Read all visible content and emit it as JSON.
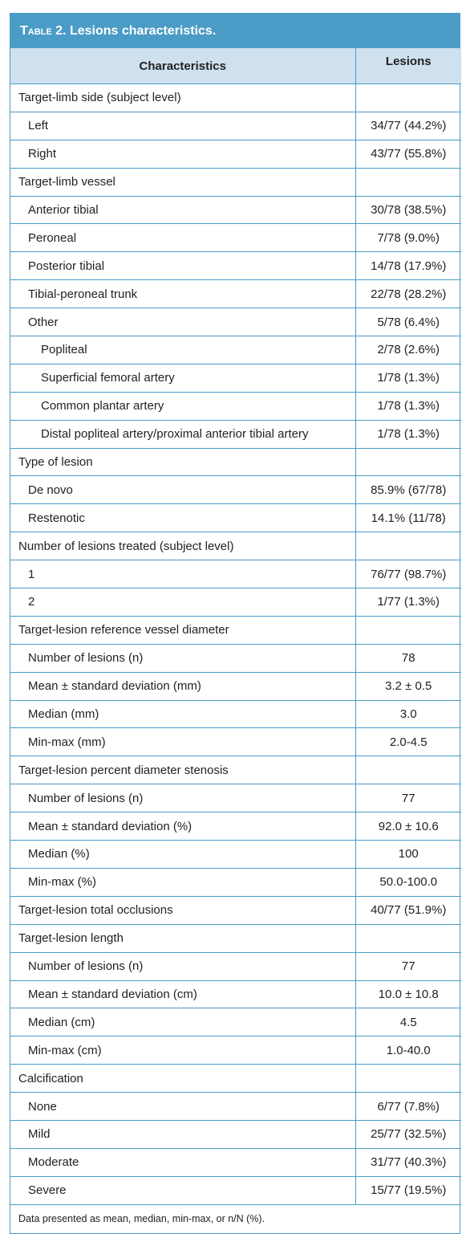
{
  "table": {
    "title_prefix": "Table 2.",
    "title_text": " Lesions characteristics.",
    "headers": [
      "Characteristics",
      "Lesions"
    ],
    "rows": [
      {
        "level": 0,
        "label": "Target-limb side (subject level)",
        "value": ""
      },
      {
        "level": 1,
        "label": "Left",
        "value": "34/77 (44.2%)"
      },
      {
        "level": 1,
        "label": "Right",
        "value": "43/77 (55.8%)"
      },
      {
        "level": 0,
        "label": "Target-limb vessel",
        "value": ""
      },
      {
        "level": 1,
        "label": "Anterior tibial",
        "value": "30/78 (38.5%)"
      },
      {
        "level": 1,
        "label": "Peroneal",
        "value": "7/78 (9.0%)"
      },
      {
        "level": 1,
        "label": "Posterior tibial",
        "value": "14/78 (17.9%)"
      },
      {
        "level": 1,
        "label": "Tibial-peroneal trunk",
        "value": "22/78 (28.2%)"
      },
      {
        "level": 1,
        "label": "Other",
        "value": "5/78 (6.4%)"
      },
      {
        "level": 2,
        "label": "Popliteal",
        "value": "2/78 (2.6%)"
      },
      {
        "level": 2,
        "label": "Superficial femoral artery",
        "value": "1/78 (1.3%)"
      },
      {
        "level": 2,
        "label": "Common plantar artery",
        "value": "1/78 (1.3%)"
      },
      {
        "level": 2,
        "label": "Distal popliteal artery/proximal anterior tibial artery",
        "value": "1/78 (1.3%)"
      },
      {
        "level": 0,
        "label": "Type of lesion",
        "value": ""
      },
      {
        "level": 1,
        "label": "De novo",
        "value": "85.9% (67/78)"
      },
      {
        "level": 1,
        "label": "Restenotic",
        "value": "14.1% (11/78)"
      },
      {
        "level": 0,
        "label": "Number of lesions treated (subject level)",
        "value": ""
      },
      {
        "level": 1,
        "label": "1",
        "value": "76/77 (98.7%)"
      },
      {
        "level": 1,
        "label": "2",
        "value": "1/77 (1.3%)"
      },
      {
        "level": 0,
        "label": "Target-lesion reference vessel diameter",
        "value": ""
      },
      {
        "level": 1,
        "label": "Number of lesions (n)",
        "value": "78"
      },
      {
        "level": 1,
        "label": "Mean ± standard deviation (mm)",
        "value": "3.2 ± 0.5"
      },
      {
        "level": 1,
        "label": "Median (mm)",
        "value": "3.0"
      },
      {
        "level": 1,
        "label": "Min-max (mm)",
        "value": "2.0-4.5"
      },
      {
        "level": 0,
        "label": "Target-lesion percent diameter stenosis",
        "value": ""
      },
      {
        "level": 1,
        "label": "Number of lesions (n)",
        "value": "77"
      },
      {
        "level": 1,
        "label": "Mean ± standard deviation (%)",
        "value": "92.0 ± 10.6"
      },
      {
        "level": 1,
        "label": "Median (%)",
        "value": "100"
      },
      {
        "level": 1,
        "label": "Min-max (%)",
        "value": "50.0-100.0"
      },
      {
        "level": 0,
        "label": "Target-lesion total occlusions",
        "value": "40/77 (51.9%)"
      },
      {
        "level": 0,
        "label": "Target-lesion length",
        "value": ""
      },
      {
        "level": 1,
        "label": "Number of lesions (n)",
        "value": "77"
      },
      {
        "level": 1,
        "label": "Mean ± standard deviation (cm)",
        "value": "10.0 ± 10.8"
      },
      {
        "level": 1,
        "label": "Median (cm)",
        "value": "4.5"
      },
      {
        "level": 1,
        "label": "Min-max (cm)",
        "value": "1.0-40.0"
      },
      {
        "level": 0,
        "label": "Calcification",
        "value": ""
      },
      {
        "level": 1,
        "label": "None",
        "value": "6/77 (7.8%)"
      },
      {
        "level": 1,
        "label": "Mild",
        "value": "25/77 (32.5%)"
      },
      {
        "level": 1,
        "label": "Moderate",
        "value": "31/77 (40.3%)"
      },
      {
        "level": 1,
        "label": "Severe",
        "value": "15/77 (19.5%)"
      }
    ],
    "footnote": "Data presented as mean, median, min-max, or n/N (%)."
  },
  "colors": {
    "accent": "#4a9cc7",
    "header_bg": "#cfe0ef"
  }
}
